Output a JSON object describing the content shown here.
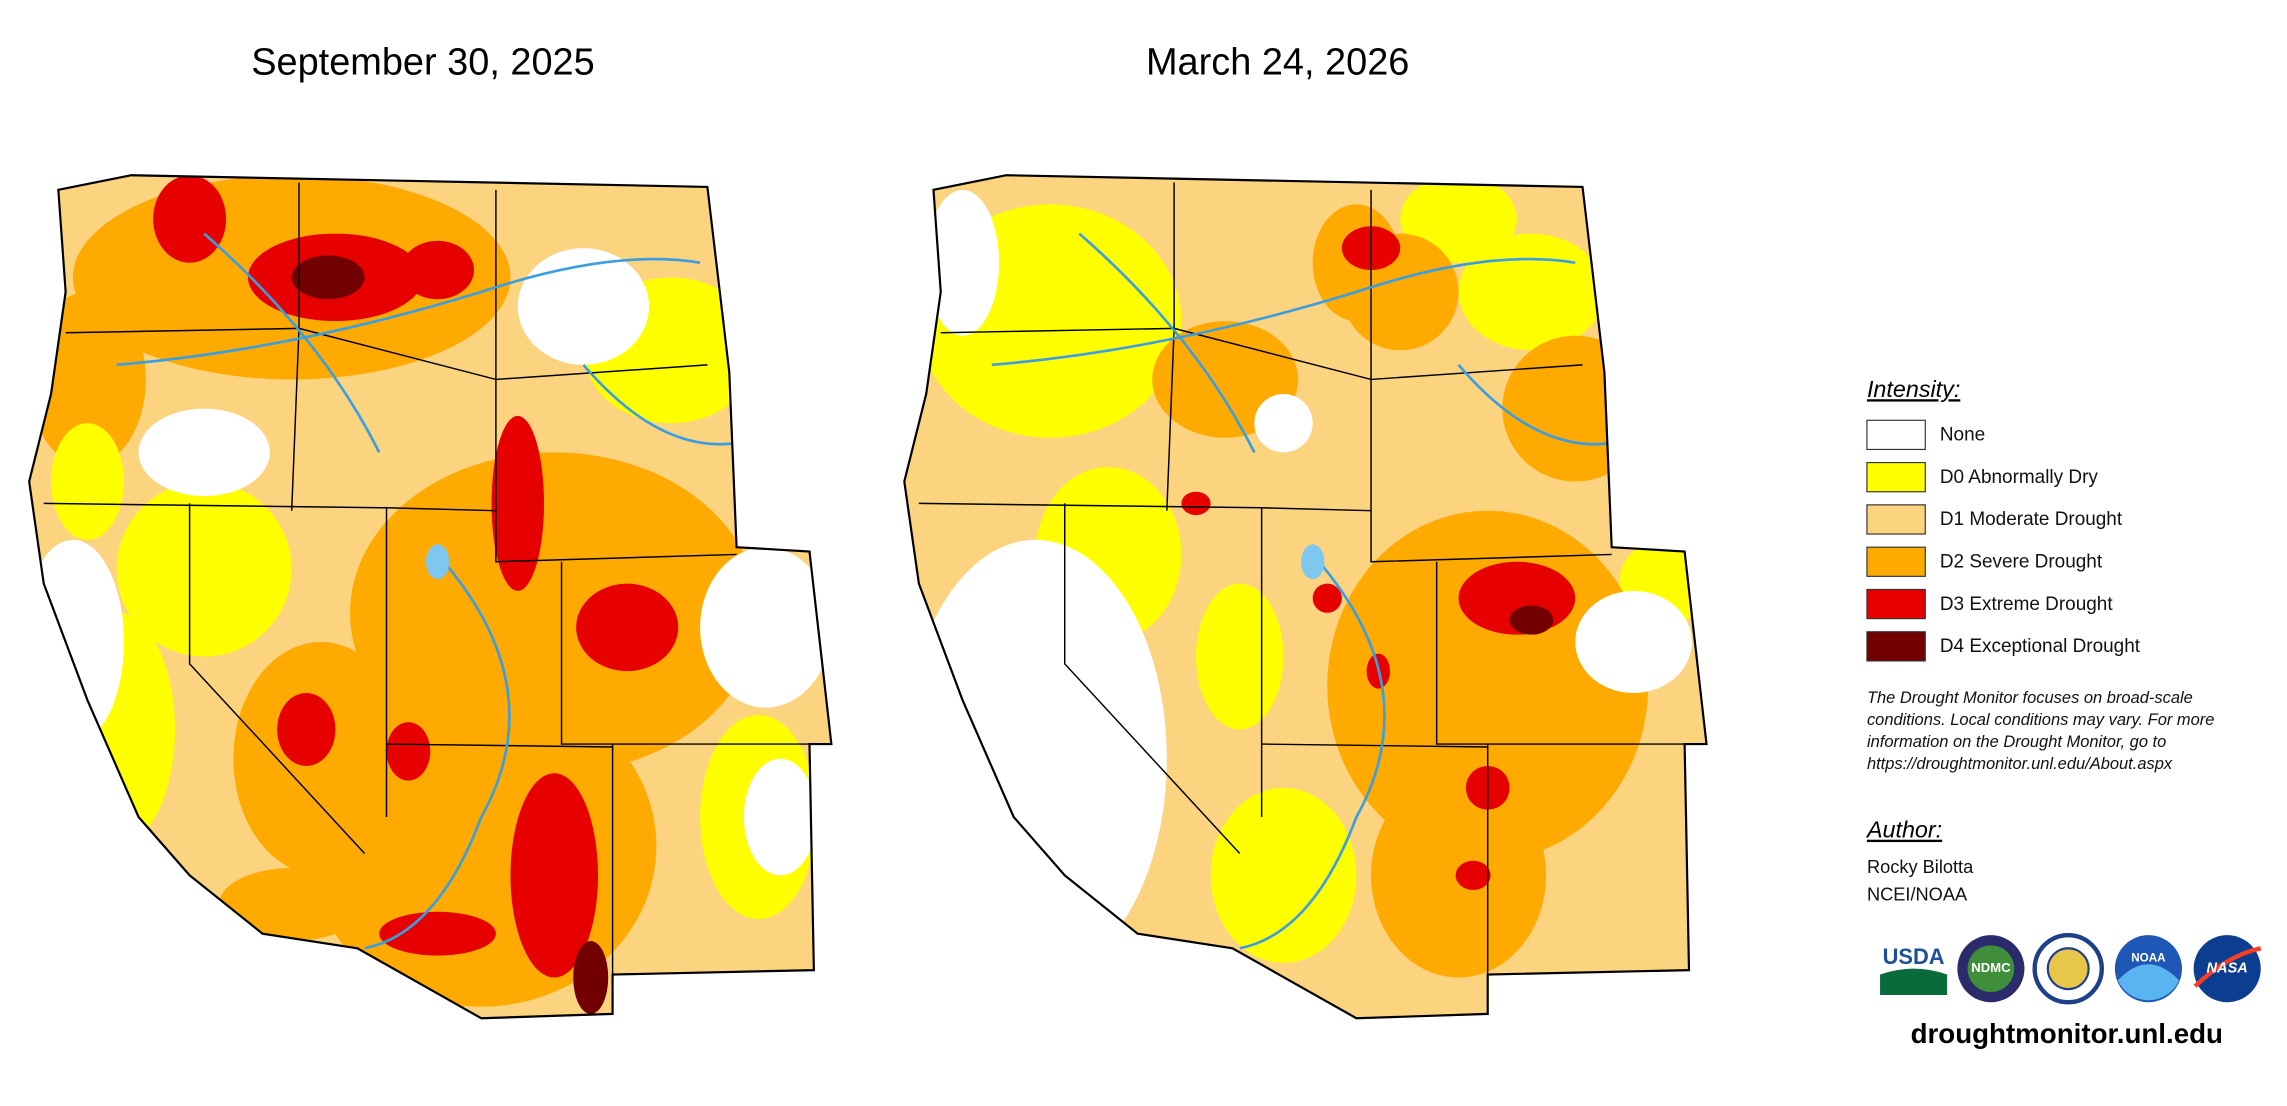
{
  "titles": [
    "September 30, 2025",
    "March 24, 2026"
  ],
  "legend": {
    "title": "Intensity:",
    "items": [
      {
        "label": "None",
        "color": "#ffffff"
      },
      {
        "label": "D0 Abnormally Dry",
        "color": "#ffff00"
      },
      {
        "label": "D1 Moderate Drought",
        "color": "#fcd37f"
      },
      {
        "label": "D2 Severe Drought",
        "color": "#ffaa00"
      },
      {
        "label": "D3 Extreme Drought",
        "color": "#e60000"
      },
      {
        "label": "D4 Exceptional Drought",
        "color": "#730000"
      }
    ]
  },
  "note": [
    "The Drought Monitor focuses on broad-scale",
    "conditions. Local conditions may vary. For more",
    "information on the Drought Monitor, go to",
    "https://droughtmonitor.unl.edu/About.aspx"
  ],
  "author": {
    "heading": "Author:",
    "lines": [
      "Rocky Bilotta",
      "NCEI/NOAA"
    ]
  },
  "logos": [
    "USDA",
    "NDMC",
    "NOAA",
    "NASA"
  ],
  "url": "droughtmonitor.unl.edu"
}
